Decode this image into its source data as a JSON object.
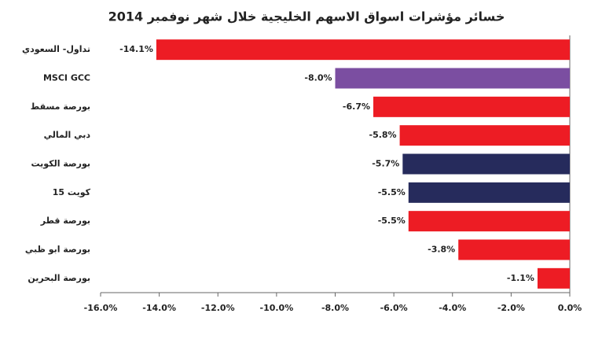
{
  "chart_data": {
    "type": "hbar",
    "title": "خسائر مؤشرات اسواق الاسهم الخليجية خلال شهر نوفمبر 2014",
    "categories": [
      "تداول- السعودي",
      "MSCI GCC",
      "بورصة مسقط",
      "دبي المالي",
      "بورصة الكويت",
      "كويت 15",
      "بورصة قطر",
      "بورصة ابو ظبي",
      "بورصة البحرين"
    ],
    "values": [
      -14.1,
      -8.0,
      -6.7,
      -5.8,
      -5.7,
      -5.5,
      -5.5,
      -3.8,
      -1.1
    ],
    "value_labels": [
      "-14.1%",
      "-8.0%",
      "-6.7%",
      "-5.8%",
      "-5.7%",
      "-5.5%",
      "-5.5%",
      "-3.8%",
      "-1.1%"
    ],
    "colors": [
      "#ed1c24",
      "#7b4ea1",
      "#ed1c24",
      "#ed1c24",
      "#262b5c",
      "#262b5c",
      "#ed1c24",
      "#ed1c24",
      "#ed1c24"
    ],
    "xlim": [
      -16,
      0
    ],
    "xticks": [
      {
        "value": -16,
        "label": "-16.0%"
      },
      {
        "value": -14,
        "label": "-14.0%"
      },
      {
        "value": -12,
        "label": "-12.0%"
      },
      {
        "value": -10,
        "label": "-10.0%"
      },
      {
        "value": -8,
        "label": "-8.0%"
      },
      {
        "value": -6,
        "label": "-6.0%"
      },
      {
        "value": -4,
        "label": "-4.0%"
      },
      {
        "value": -2,
        "label": "-2.0%"
      },
      {
        "value": 0,
        "label": "0.0%"
      }
    ],
    "grid": false
  }
}
